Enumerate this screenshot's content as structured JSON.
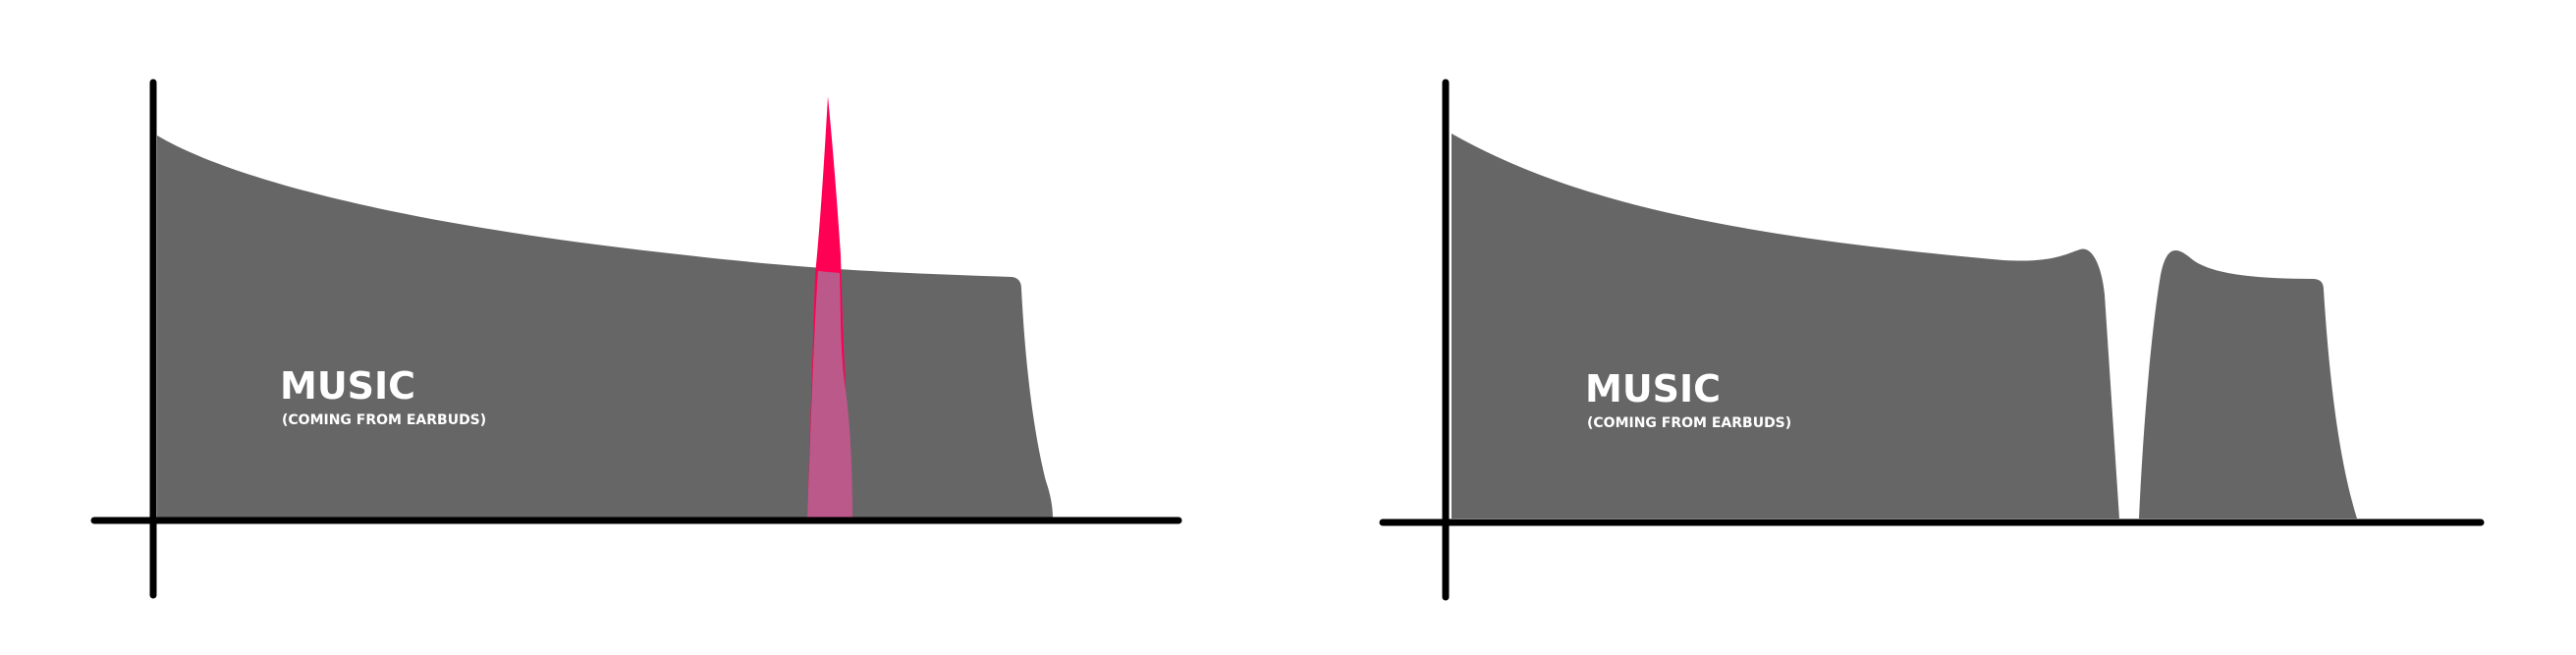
{
  "panels": [
    {
      "title": "MUSIC",
      "subtitle": "(COMING FROM EARBUDS)"
    },
    {
      "title": "MUSIC",
      "subtitle": "(COMING FROM EARBUDS)"
    }
  ],
  "colors": {
    "axis": "#000000",
    "area": "#666666",
    "spike": "#ff0055",
    "overlap": "#bb5a8a"
  }
}
